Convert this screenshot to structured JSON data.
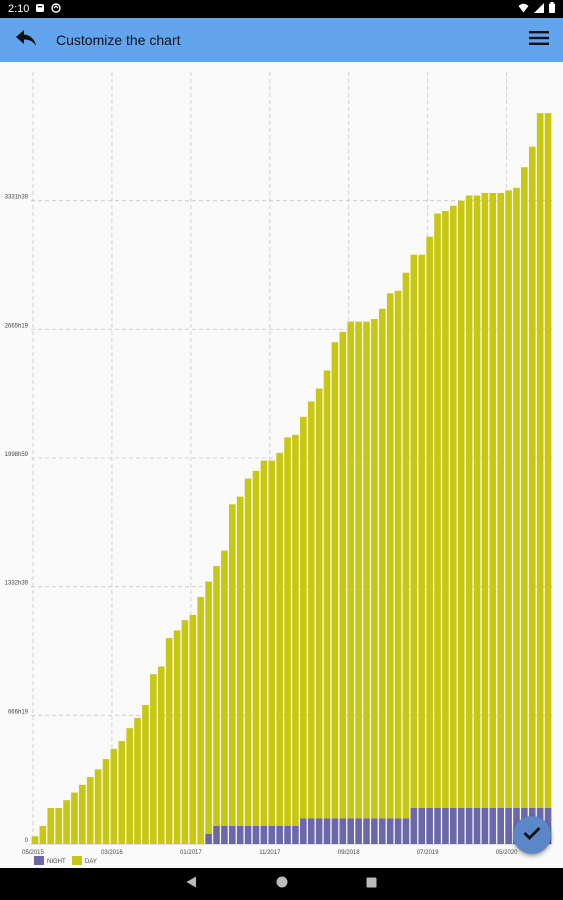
{
  "status_bar": {
    "time": "2:10"
  },
  "app_bar": {
    "title": "Customize the chart"
  },
  "chart_data": {
    "type": "bar",
    "stacked": true,
    "series": [
      {
        "name": "NIGHT",
        "color": "#6b68a8",
        "values": [
          0,
          0,
          0,
          0,
          0,
          0,
          0,
          0,
          0,
          0,
          0,
          0,
          0,
          0,
          0,
          0,
          0,
          0,
          0,
          0,
          0,
          0,
          4,
          7,
          7,
          7,
          7,
          7,
          7,
          7,
          7,
          7,
          7,
          7,
          10,
          10,
          10,
          10,
          10,
          10,
          10,
          10,
          10,
          10,
          10,
          10,
          10,
          10,
          14,
          14,
          14,
          14,
          14,
          14,
          14,
          14,
          14,
          14,
          14,
          14,
          14,
          14,
          14,
          14,
          14,
          14
        ]
      },
      {
        "name": "DAY",
        "color": "#c8c812",
        "values": [
          3,
          7,
          14,
          14,
          17,
          20,
          23,
          26,
          29,
          33,
          37,
          40,
          45,
          49,
          54,
          66,
          69,
          80,
          83,
          87,
          89,
          96,
          98,
          101,
          107,
          125,
          128,
          135,
          138,
          142,
          142,
          145,
          151,
          152,
          156,
          162,
          167,
          174,
          185,
          189,
          193,
          193,
          193,
          194,
          198,
          204,
          205,
          212,
          215,
          215,
          222,
          231,
          232,
          234,
          236,
          238,
          238,
          239,
          239,
          239,
          240,
          241,
          249,
          257,
          270,
          270
        ]
      }
    ],
    "x_tick_labels": [
      "05/2015",
      "03/2016",
      "01/2017",
      "11/2017",
      "09/2018",
      "07/2019",
      "05/2020"
    ],
    "x_tick_indices": [
      0,
      10,
      20,
      30,
      40,
      50,
      60
    ],
    "y_tick_labels": [
      "0",
      "666h19",
      "1332h39",
      "1998h59",
      "2665h19",
      "3331h39"
    ],
    "y_tick_values": [
      0,
      50,
      100,
      150,
      200,
      250
    ],
    "ylim": [
      0,
      300
    ],
    "grid": true,
    "legend_position": "bottom-left"
  }
}
